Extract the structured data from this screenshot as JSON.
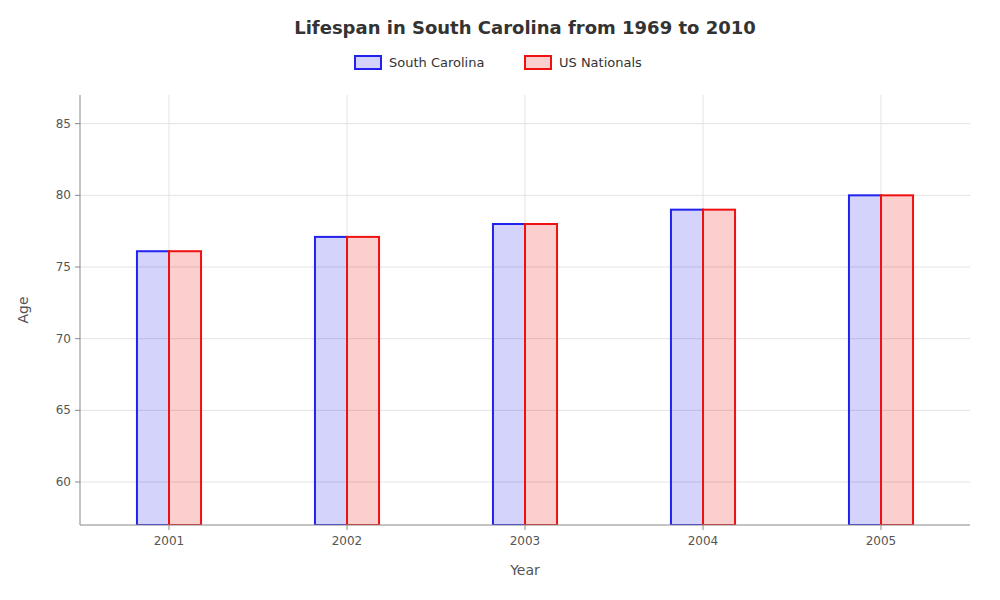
{
  "chart_data": {
    "type": "bar",
    "title": "Lifespan in South Carolina from 1969 to 2010",
    "xlabel": "Year",
    "ylabel": "Age",
    "categories": [
      "2001",
      "2002",
      "2003",
      "2004",
      "2005"
    ],
    "series": [
      {
        "name": "South Carolina",
        "color": "#2222ee",
        "values": [
          76.1,
          77.1,
          78.0,
          79.0,
          80.0
        ]
      },
      {
        "name": "US Nationals",
        "color": "#ee1111",
        "values": [
          76.1,
          77.1,
          78.0,
          79.0,
          80.0
        ]
      }
    ],
    "ylim": [
      57,
      87
    ],
    "yticks": [
      60,
      65,
      70,
      75,
      80,
      85
    ],
    "grid": true,
    "legend": "top"
  }
}
